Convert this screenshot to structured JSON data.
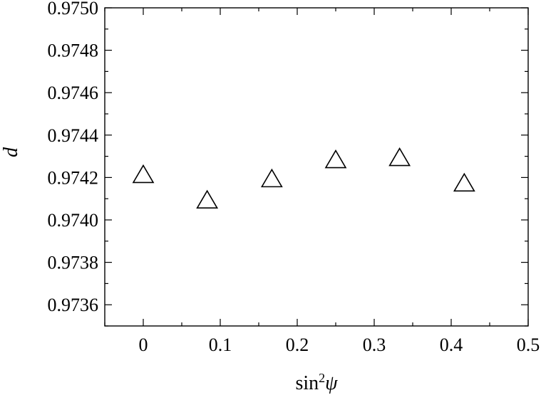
{
  "chart_data": {
    "type": "scatter",
    "xlabel": "sin²ψ",
    "xlabel_parts": {
      "base": "sin",
      "sup": "2",
      "var": "ψ"
    },
    "ylabel": "d",
    "xlim": [
      -0.05,
      0.5
    ],
    "ylim": [
      0.9735,
      0.975
    ],
    "x_ticks": [
      0,
      0.1,
      0.2,
      0.3,
      0.4,
      0.5
    ],
    "x_tick_labels": [
      "0",
      "0.1",
      "0.2",
      "0.3",
      "0.4",
      "0.5"
    ],
    "x_minor_ticks": [
      -0.05,
      0.05,
      0.15,
      0.25,
      0.35,
      0.45
    ],
    "y_ticks": [
      0.9736,
      0.9738,
      0.974,
      0.9742,
      0.9744,
      0.9746,
      0.9748,
      0.975
    ],
    "y_tick_labels": [
      "0.9736",
      "0.9738",
      "0.9740",
      "0.9742",
      "0.9744",
      "0.9746",
      "0.9748",
      "0.9750"
    ],
    "y_minor_ticks": [
      0.9735,
      0.9737,
      0.9739,
      0.9741,
      0.9743,
      0.9745,
      0.9747,
      0.9749
    ],
    "grid": false,
    "marker": "open-triangle",
    "series": [
      {
        "x": [
          0.0,
          0.083,
          0.167,
          0.25,
          0.333,
          0.417
        ],
        "y": [
          0.97421,
          0.97409,
          0.97419,
          0.97428,
          0.97429,
          0.97417
        ]
      }
    ]
  }
}
